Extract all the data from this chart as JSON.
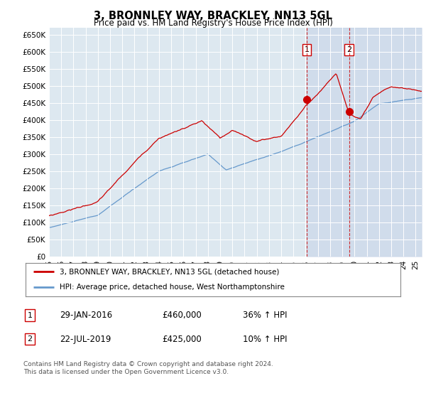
{
  "title": "3, BRONNLEY WAY, BRACKLEY, NN13 5GL",
  "subtitle": "Price paid vs. HM Land Registry's House Price Index (HPI)",
  "ylabel_ticks": [
    "£0",
    "£50K",
    "£100K",
    "£150K",
    "£200K",
    "£250K",
    "£300K",
    "£350K",
    "£400K",
    "£450K",
    "£500K",
    "£550K",
    "£600K",
    "£650K"
  ],
  "ytick_values": [
    0,
    50000,
    100000,
    150000,
    200000,
    250000,
    300000,
    350000,
    400000,
    450000,
    500000,
    550000,
    600000,
    650000
  ],
  "ylim": [
    0,
    670000
  ],
  "xlim_start": 1995.0,
  "xlim_end": 2025.5,
  "red_color": "#cc0000",
  "blue_color": "#6699cc",
  "blue_fill_color": "#aabbdd",
  "transaction1_x": 2016.08,
  "transaction1_y": 460000,
  "transaction2_x": 2019.56,
  "transaction2_y": 425000,
  "legend_label1": "3, BRONNLEY WAY, BRACKLEY, NN13 5GL (detached house)",
  "legend_label2": "HPI: Average price, detached house, West Northamptonshire",
  "table_row1": [
    "1",
    "29-JAN-2016",
    "£460,000",
    "36% ↑ HPI"
  ],
  "table_row2": [
    "2",
    "22-JUL-2019",
    "£425,000",
    "10% ↑ HPI"
  ],
  "footer": "Contains HM Land Registry data © Crown copyright and database right 2024.\nThis data is licensed under the Open Government Licence v3.0.",
  "background_color": "#ffffff",
  "plot_bg_color": "#dde8f0",
  "grid_color": "#ffffff"
}
